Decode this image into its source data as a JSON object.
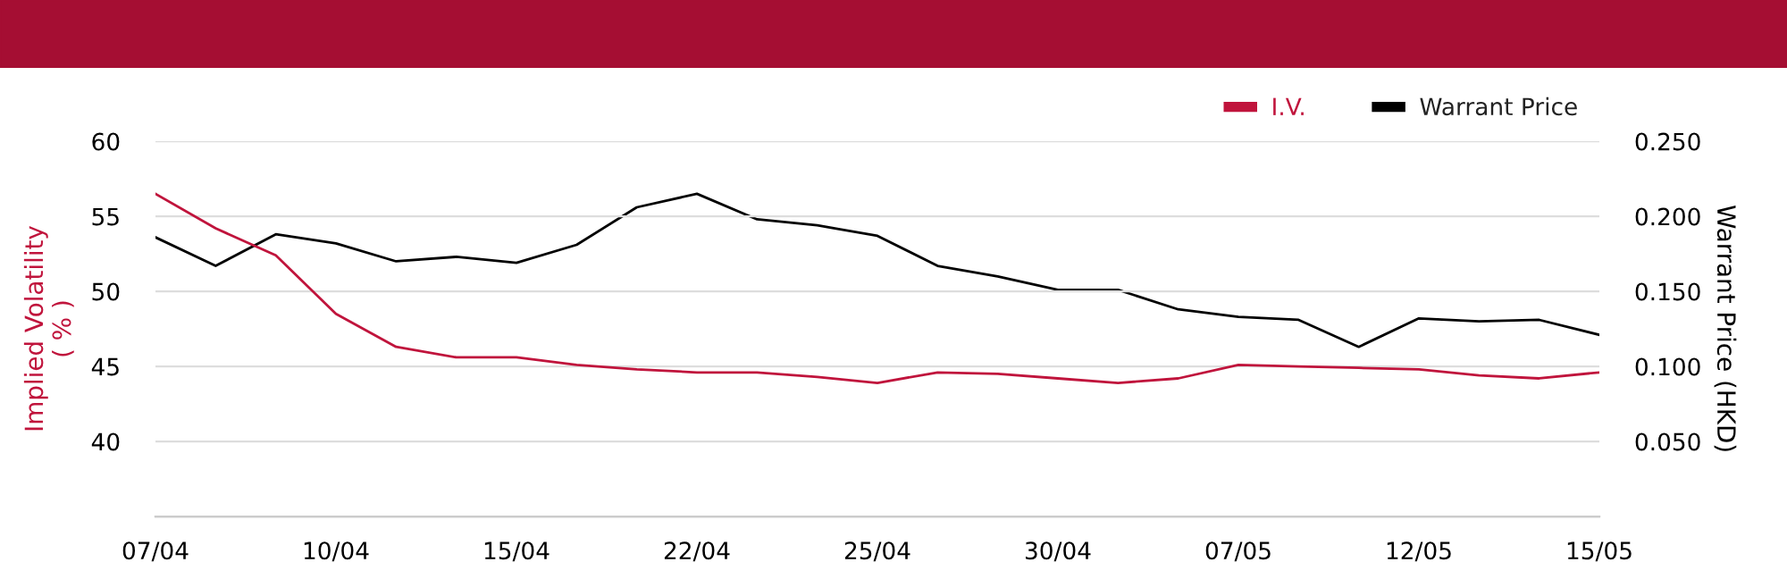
{
  "chart_data": {
    "type": "line",
    "categories": [
      "07/04",
      null,
      null,
      "10/04",
      null,
      null,
      "15/04",
      null,
      null,
      "22/04",
      null,
      null,
      "25/04",
      null,
      null,
      "30/04",
      null,
      null,
      "07/05",
      null,
      null,
      "12/05",
      null,
      null,
      "15/05"
    ],
    "series": [
      {
        "name": "I.V.",
        "color": "#c0143c",
        "values": [
          56.5,
          54.2,
          52.4,
          48.5,
          46.3,
          45.6,
          45.6,
          45.1,
          44.8,
          44.6,
          44.6,
          44.3,
          43.9,
          44.6,
          44.5,
          44.2,
          43.9,
          44.2,
          45.1,
          45.0,
          44.9,
          44.8,
          44.4,
          44.2,
          44.6
        ]
      },
      {
        "name": "Warrant Price",
        "color": "#000000",
        "axis": "y2",
        "values": [
          0.186,
          0.167,
          0.188,
          0.182,
          0.17,
          0.173,
          0.169,
          0.181,
          0.206,
          0.215,
          0.198,
          0.194,
          0.187,
          0.167,
          0.16,
          0.151,
          0.151,
          0.138,
          0.133,
          0.131,
          0.113,
          0.132,
          0.13,
          0.131,
          0.121
        ]
      }
    ],
    "ylabel": "Implied Volatility\n( % )",
    "y2label": "Warrant Price (HKD)",
    "ylim": [
      35,
      60
    ],
    "yticks": [
      40,
      45,
      50,
      55,
      60
    ],
    "y2lim": [
      0,
      0.25
    ],
    "y2ticks": [
      {
        "value": 0.05,
        "label": "0.050"
      },
      {
        "value": 0.1,
        "label": "0.100"
      },
      {
        "value": 0.15,
        "label": "0.150"
      },
      {
        "value": 0.2,
        "label": "0.200"
      },
      {
        "value": 0.25,
        "label": "0.250"
      }
    ],
    "grid": "y",
    "legend": "top right",
    "marker": "none",
    "line_style": "solid"
  }
}
